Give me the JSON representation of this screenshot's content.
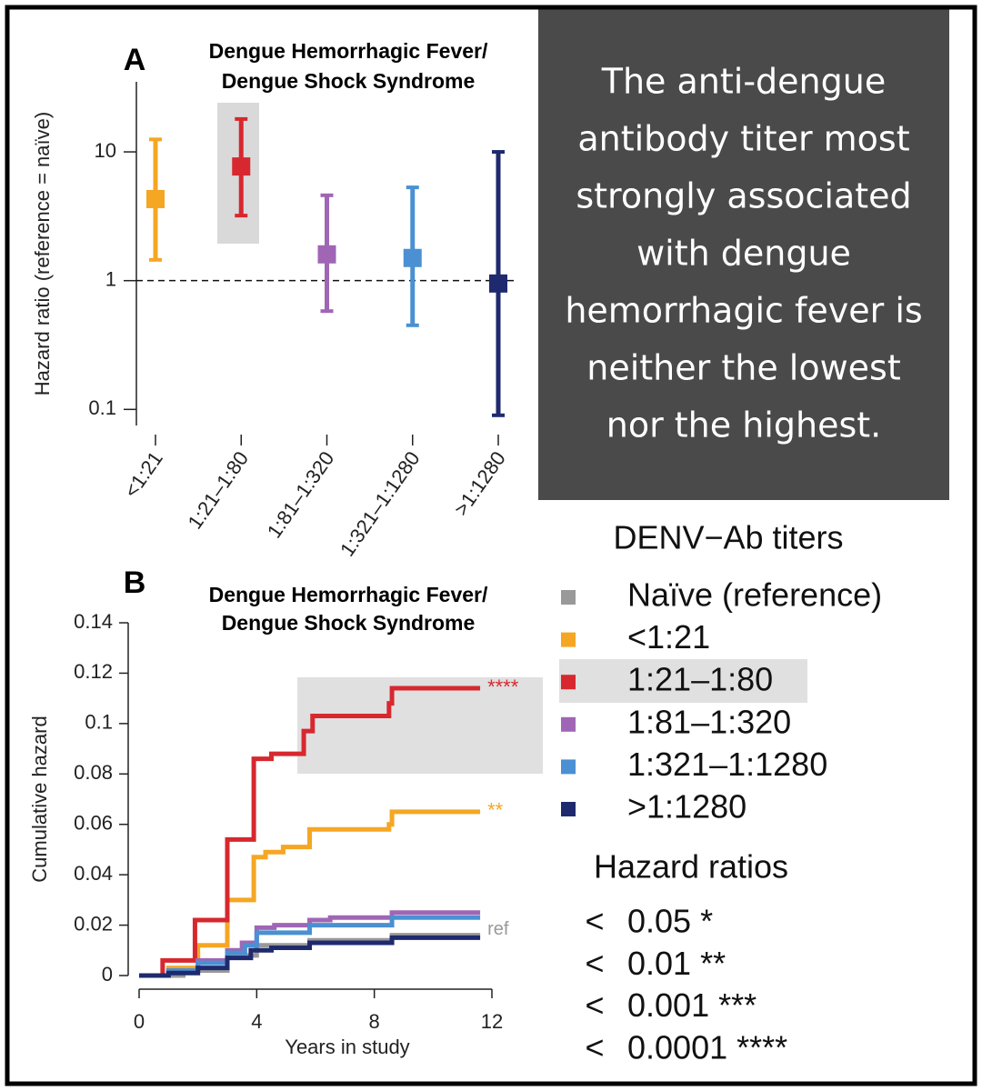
{
  "chart_data": [
    {
      "type": "errorbar",
      "panel": "A",
      "title": [
        "Dengue Hemorrhagic Fever/",
        "Dengue Shock Syndrome"
      ],
      "ylabel": "Hazard ratio (reference = naïve)",
      "categories": [
        "<1:21",
        "1:21–1:80",
        "1:81–1:320",
        "1:321–1:1280",
        ">1:1280"
      ],
      "values": [
        4.3,
        7.7,
        1.6,
        1.5,
        0.95
      ],
      "lower": [
        1.45,
        3.2,
        0.58,
        0.45,
        0.09
      ],
      "upper": [
        12.5,
        18,
        4.6,
        5.3,
        10
      ],
      "colors": [
        "#f5a623",
        "#d7282f",
        "#a066b5",
        "#4a90d2",
        "#1f2a6e"
      ],
      "log_scale": true,
      "ylim": [
        0.075,
        35
      ],
      "yticks": [
        0.1,
        1,
        10
      ],
      "reference": 1
    },
    {
      "type": "line",
      "panel": "B",
      "title": [
        "Dengue Hemorrhagic Fever/",
        "Dengue Shock Syndrome"
      ],
      "xlabel": "Years in study",
      "ylabel": "Cumulative hazard",
      "xlim": [
        0,
        12
      ],
      "xticks": [
        0,
        4,
        8,
        12
      ],
      "ylim": [
        0,
        0.14
      ],
      "yticks": [
        0,
        0.02,
        0.04,
        0.06,
        0.08,
        0.1,
        0.12,
        0.14
      ],
      "legend_title": "DENV−Ab titers",
      "series": [
        {
          "name": "Naïve (reference)",
          "color": "#999999",
          "end_label": "ref",
          "x": [
            0,
            1.5,
            1.5,
            3.0,
            3.0,
            4.0,
            4.0,
            5.8,
            5.8,
            8.6,
            8.6,
            11.6
          ],
          "values": [
            0,
            0,
            0.002,
            0.002,
            0.008,
            0.008,
            0.012,
            0.012,
            0.014,
            0.014,
            0.016,
            0.016
          ]
        },
        {
          "name": "<1:21",
          "color": "#f5a623",
          "end_label": "**",
          "x": [
            0,
            1.0,
            1.0,
            2.0,
            2.0,
            3.0,
            3.0,
            3.9,
            3.9,
            4.3,
            4.3,
            4.9,
            4.9,
            5.8,
            5.8,
            8.5,
            8.5,
            8.6,
            8.6,
            11.6
          ],
          "values": [
            0,
            0,
            0.003,
            0.003,
            0.012,
            0.012,
            0.03,
            0.03,
            0.047,
            0.047,
            0.049,
            0.049,
            0.051,
            0.051,
            0.058,
            0.058,
            0.06,
            0.06,
            0.065,
            0.065
          ]
        },
        {
          "name": "1:21–1:80",
          "color": "#d7282f",
          "end_label": "****",
          "x": [
            0,
            0.8,
            0.8,
            1.9,
            1.9,
            3.0,
            3.0,
            3.9,
            3.9,
            4.5,
            4.5,
            5.6,
            5.6,
            5.9,
            5.9,
            8.5,
            8.5,
            8.6,
            8.6,
            11.6
          ],
          "values": [
            0,
            0,
            0.006,
            0.006,
            0.022,
            0.022,
            0.054,
            0.054,
            0.086,
            0.086,
            0.088,
            0.088,
            0.097,
            0.097,
            0.103,
            0.103,
            0.108,
            0.108,
            0.114,
            0.114
          ]
        },
        {
          "name": "1:81–1:320",
          "color": "#a066b5",
          "x": [
            0,
            1.0,
            1.0,
            2.0,
            2.0,
            3.0,
            3.0,
            3.5,
            3.5,
            4.0,
            4.0,
            4.6,
            4.6,
            5.8,
            5.8,
            6.5,
            6.5,
            8.6,
            8.6,
            11.6
          ],
          "values": [
            0,
            0,
            0.002,
            0.002,
            0.006,
            0.006,
            0.01,
            0.01,
            0.013,
            0.013,
            0.019,
            0.019,
            0.02,
            0.02,
            0.022,
            0.022,
            0.023,
            0.023,
            0.025,
            0.025
          ]
        },
        {
          "name": "1:321–1:1280",
          "color": "#4a90d2",
          "x": [
            0,
            1.0,
            1.0,
            2.0,
            2.0,
            3.0,
            3.0,
            3.6,
            3.6,
            4.0,
            4.0,
            5.8,
            5.8,
            8.6,
            8.6,
            11.6
          ],
          "values": [
            0,
            0,
            0.002,
            0.002,
            0.005,
            0.005,
            0.009,
            0.009,
            0.012,
            0.012,
            0.017,
            0.017,
            0.02,
            0.02,
            0.023,
            0.023
          ]
        },
        {
          "name": ">1:1280",
          "color": "#1f2a6e",
          "x": [
            0,
            1.0,
            1.0,
            2.0,
            2.0,
            3.0,
            3.0,
            3.8,
            3.8,
            4.5,
            4.5,
            5.8,
            5.8,
            8.6,
            8.6,
            11.6
          ],
          "values": [
            0,
            0,
            0.001,
            0.001,
            0.003,
            0.003,
            0.007,
            0.007,
            0.01,
            0.01,
            0.011,
            0.011,
            0.013,
            0.013,
            0.015,
            0.015
          ]
        }
      ],
      "significance": {
        "title": "Hazard ratios",
        "rows": [
          [
            "<",
            "0.05 *"
          ],
          [
            "<",
            "0.01 **"
          ],
          [
            "<",
            "0.001 ***"
          ],
          [
            "<",
            "0.0001 ****"
          ]
        ]
      }
    }
  ],
  "callout": {
    "lines": [
      "The  anti-dengue",
      "antibody titer most",
      "strongly associated",
      "with dengue",
      "hemorrhagic fever is",
      "neither the lowest",
      "nor the highest."
    ]
  }
}
